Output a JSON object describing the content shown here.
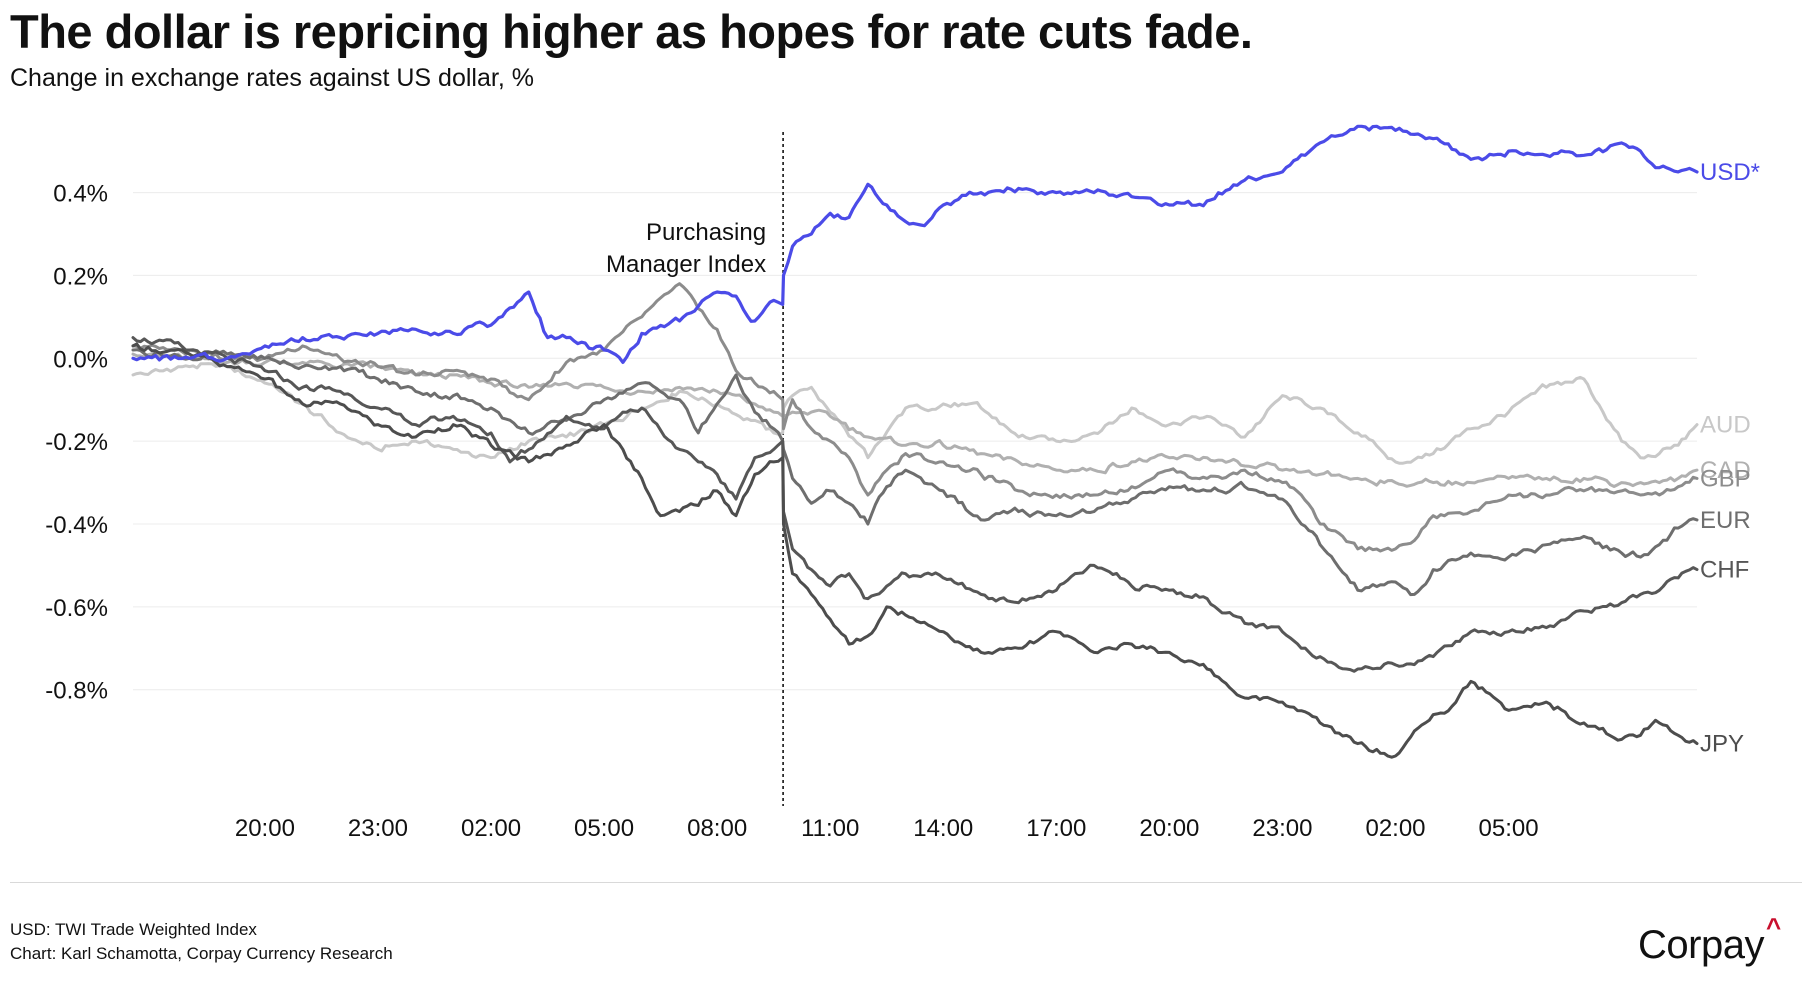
{
  "title": "The dollar is repricing higher as hopes for rate cuts fade.",
  "subtitle": "Change in exchange rates against US dollar, %",
  "notes": [
    "USD: TWI Trade Weighted Index",
    "Chart: Karl Schamotta, Corpay Currency Research"
  ],
  "logo": {
    "text": "Corpay",
    "mark": "^",
    "mark_color": "#c8102e"
  },
  "chart_data": {
    "type": "line",
    "title": "The dollar is repricing higher as hopes for rate cuts fade.",
    "subtitle": "Change in exchange rates against US dollar, %",
    "xlabel": "",
    "ylabel": "",
    "x_range_hours": [
      16.5,
      58.0
    ],
    "x_ticks": [
      {
        "h": 20,
        "label": "20:00"
      },
      {
        "h": 23,
        "label": "23:00"
      },
      {
        "h": 26,
        "label": "02:00"
      },
      {
        "h": 29,
        "label": "05:00"
      },
      {
        "h": 32,
        "label": "08:00"
      },
      {
        "h": 35,
        "label": "11:00"
      },
      {
        "h": 38,
        "label": "14:00"
      },
      {
        "h": 41,
        "label": "17:00"
      },
      {
        "h": 44,
        "label": "20:00"
      },
      {
        "h": 47,
        "label": "23:00"
      },
      {
        "h": 50,
        "label": "02:00"
      },
      {
        "h": 53,
        "label": "05:00"
      }
    ],
    "y_ticks": [
      {
        "v": 0.4,
        "label": "0.4%"
      },
      {
        "v": 0.2,
        "label": "0.2%"
      },
      {
        "v": 0.0,
        "label": "0.0%"
      },
      {
        "v": -0.2,
        "label": "-0.2%"
      },
      {
        "v": -0.4,
        "label": "-0.4%"
      },
      {
        "v": -0.6,
        "label": "-0.6%"
      },
      {
        "v": -0.8,
        "label": "-0.8%"
      }
    ],
    "ylim": [
      -1.03,
      0.58
    ],
    "grid": "horizontal",
    "legend": "labels at line ends",
    "annotation": {
      "h": 33.75,
      "label_lines": [
        "Purchasing",
        "Manager Index"
      ]
    },
    "series": [
      {
        "name": "USD*",
        "color": "#4b4be8",
        "x": [
          16.5,
          18,
          19,
          20,
          21,
          22,
          23,
          24,
          25,
          26,
          27,
          27.5,
          28,
          29,
          29.5,
          30,
          31,
          32,
          32.5,
          33,
          33.5,
          33.74,
          33.76,
          34,
          34.5,
          35,
          35.5,
          36,
          36.5,
          37,
          37.5,
          38,
          39,
          40,
          41,
          42,
          43,
          44,
          45,
          46,
          47,
          48,
          49,
          50,
          51,
          52,
          53,
          54,
          55,
          56,
          56.5,
          57,
          57.5,
          58
        ],
        "y": [
          0.0,
          0.0,
          0.0,
          0.03,
          0.05,
          0.05,
          0.06,
          0.07,
          0.06,
          0.08,
          0.16,
          0.05,
          0.05,
          0.02,
          -0.01,
          0.06,
          0.09,
          0.16,
          0.15,
          0.09,
          0.14,
          0.13,
          0.2,
          0.27,
          0.3,
          0.35,
          0.34,
          0.42,
          0.37,
          0.33,
          0.32,
          0.37,
          0.4,
          0.41,
          0.4,
          0.4,
          0.39,
          0.37,
          0.38,
          0.43,
          0.45,
          0.52,
          0.56,
          0.55,
          0.53,
          0.48,
          0.5,
          0.49,
          0.49,
          0.52,
          0.5,
          0.46,
          0.45,
          0.45
        ]
      },
      {
        "name": "AUD",
        "color": "#c8c8c8",
        "x": [
          16.5,
          18,
          19,
          20,
          21,
          22,
          23,
          24,
          25,
          26,
          27,
          28,
          29,
          30,
          31,
          32,
          33,
          33.5,
          33.74,
          33.76,
          34,
          34.5,
          35,
          36,
          37,
          38,
          39,
          40,
          41,
          42,
          43,
          44,
          45,
          46,
          47,
          48,
          49,
          50,
          51,
          52,
          53,
          54,
          55,
          56,
          56.5,
          57,
          57.5,
          58
        ],
        "y": [
          -0.04,
          -0.02,
          -0.02,
          -0.06,
          -0.11,
          -0.18,
          -0.22,
          -0.2,
          -0.22,
          -0.24,
          -0.2,
          -0.19,
          -0.16,
          -0.12,
          -0.08,
          -0.11,
          -0.15,
          -0.18,
          -0.18,
          -0.12,
          -0.09,
          -0.07,
          -0.13,
          -0.24,
          -0.12,
          -0.11,
          -0.12,
          -0.19,
          -0.2,
          -0.18,
          -0.12,
          -0.16,
          -0.14,
          -0.19,
          -0.09,
          -0.12,
          -0.18,
          -0.25,
          -0.23,
          -0.17,
          -0.13,
          -0.07,
          -0.05,
          -0.2,
          -0.24,
          -0.23,
          -0.21,
          -0.16
        ]
      },
      {
        "name": "CAD",
        "color": "#b0b0b0",
        "x": [
          16.5,
          18,
          19,
          20,
          21,
          22,
          23,
          24,
          25,
          26,
          27,
          28,
          29,
          30,
          31,
          32,
          33,
          33.5,
          33.74,
          33.76,
          34,
          34.5,
          35,
          36,
          37,
          38,
          39,
          40,
          41,
          42,
          43,
          44,
          45,
          46,
          47,
          48,
          49,
          50,
          51,
          52,
          53,
          54,
          55,
          56,
          56.5,
          57,
          57.5,
          58
        ],
        "y": [
          0.01,
          0.0,
          -0.01,
          -0.01,
          -0.01,
          -0.02,
          -0.02,
          -0.04,
          -0.04,
          -0.06,
          -0.07,
          -0.06,
          -0.07,
          -0.08,
          -0.07,
          -0.08,
          -0.11,
          -0.13,
          -0.14,
          -0.14,
          -0.13,
          -0.13,
          -0.14,
          -0.19,
          -0.21,
          -0.21,
          -0.23,
          -0.25,
          -0.27,
          -0.27,
          -0.25,
          -0.24,
          -0.24,
          -0.26,
          -0.27,
          -0.28,
          -0.29,
          -0.3,
          -0.3,
          -0.3,
          -0.29,
          -0.29,
          -0.29,
          -0.3,
          -0.3,
          -0.3,
          -0.29,
          -0.27
        ]
      },
      {
        "name": "GBP",
        "color": "#8c8c8c",
        "x": [
          16.5,
          18,
          19,
          20,
          21,
          22,
          23,
          24,
          25,
          26,
          27,
          28,
          29,
          30,
          31,
          31.5,
          32,
          32.5,
          33,
          33.5,
          33.74,
          33.76,
          34,
          34.5,
          35,
          35.5,
          36,
          36.5,
          37,
          38,
          39,
          40,
          41,
          42,
          43,
          44,
          45,
          46,
          47,
          47.5,
          48,
          49,
          50,
          50.5,
          51,
          52,
          53,
          54,
          55,
          56,
          56.5,
          57,
          57.5,
          58
        ],
        "y": [
          0.03,
          0.02,
          0.0,
          0.0,
          0.03,
          0.0,
          -0.02,
          -0.04,
          -0.03,
          -0.05,
          -0.1,
          -0.01,
          0.02,
          0.1,
          0.18,
          0.12,
          0.07,
          -0.03,
          -0.06,
          -0.08,
          -0.1,
          -0.17,
          -0.1,
          -0.17,
          -0.2,
          -0.24,
          -0.33,
          -0.27,
          -0.23,
          -0.25,
          -0.28,
          -0.32,
          -0.33,
          -0.33,
          -0.31,
          -0.27,
          -0.29,
          -0.27,
          -0.3,
          -0.33,
          -0.4,
          -0.46,
          -0.46,
          -0.44,
          -0.38,
          -0.37,
          -0.33,
          -0.33,
          -0.32,
          -0.32,
          -0.33,
          -0.33,
          -0.31,
          -0.29
        ]
      },
      {
        "name": "EUR",
        "color": "#6e6e6e",
        "x": [
          16.5,
          18,
          19,
          20,
          21,
          22,
          23,
          24,
          25,
          26,
          27,
          28,
          29,
          30,
          31,
          31.5,
          32,
          32.5,
          33,
          33.5,
          33.74,
          33.76,
          34,
          34.5,
          35,
          35.5,
          36,
          36.5,
          37,
          38,
          39,
          40,
          41,
          42,
          43,
          44,
          45,
          46,
          47,
          47.5,
          48,
          49,
          50,
          50.5,
          51,
          52,
          53,
          54,
          55,
          56,
          56.5,
          57,
          57.5,
          58
        ],
        "y": [
          0.02,
          0.0,
          0.01,
          0.0,
          -0.02,
          -0.02,
          -0.05,
          -0.08,
          -0.09,
          -0.12,
          -0.18,
          -0.15,
          -0.1,
          -0.06,
          -0.1,
          -0.18,
          -0.11,
          -0.04,
          -0.13,
          -0.17,
          -0.2,
          -0.22,
          -0.29,
          -0.35,
          -0.32,
          -0.35,
          -0.4,
          -0.31,
          -0.27,
          -0.32,
          -0.39,
          -0.37,
          -0.38,
          -0.37,
          -0.34,
          -0.31,
          -0.32,
          -0.31,
          -0.34,
          -0.4,
          -0.45,
          -0.56,
          -0.54,
          -0.57,
          -0.51,
          -0.47,
          -0.48,
          -0.45,
          -0.43,
          -0.47,
          -0.48,
          -0.45,
          -0.41,
          -0.39
        ]
      },
      {
        "name": "CHF",
        "color": "#575757",
        "x": [
          16.5,
          18,
          19,
          20,
          21,
          22,
          23,
          24,
          25,
          26,
          26.5,
          27,
          28,
          29,
          29.5,
          30,
          31,
          31.5,
          32,
          32.5,
          33,
          33.5,
          33.74,
          33.76,
          34,
          34.5,
          35,
          35.5,
          36,
          36.5,
          37,
          38,
          39,
          40,
          41,
          42,
          43,
          44,
          45,
          46,
          47,
          47.5,
          48,
          49,
          50,
          51,
          52,
          53,
          54,
          55,
          56,
          56.5,
          57,
          57.5,
          58
        ],
        "y": [
          0.05,
          0.02,
          0.0,
          -0.03,
          -0.07,
          -0.08,
          -0.12,
          -0.16,
          -0.14,
          -0.18,
          -0.25,
          -0.22,
          -0.14,
          -0.17,
          -0.13,
          -0.12,
          -0.22,
          -0.25,
          -0.28,
          -0.34,
          -0.24,
          -0.22,
          -0.2,
          -0.37,
          -0.46,
          -0.51,
          -0.55,
          -0.52,
          -0.58,
          -0.55,
          -0.52,
          -0.53,
          -0.57,
          -0.59,
          -0.56,
          -0.5,
          -0.55,
          -0.56,
          -0.58,
          -0.64,
          -0.66,
          -0.7,
          -0.72,
          -0.75,
          -0.74,
          -0.72,
          -0.66,
          -0.66,
          -0.65,
          -0.61,
          -0.59,
          -0.57,
          -0.56,
          -0.53,
          -0.51
        ]
      },
      {
        "name": "JPY",
        "color": "#4d4d4d",
        "x": [
          16.5,
          18,
          19,
          20,
          21,
          22,
          23,
          24,
          25,
          26,
          27,
          28,
          29,
          30,
          30.5,
          31,
          32,
          32.5,
          33,
          33.5,
          33.74,
          33.76,
          34,
          34.5,
          35,
          35.5,
          36,
          36.5,
          37,
          38,
          39,
          40,
          41,
          42,
          43,
          44,
          45,
          46,
          47,
          48,
          49,
          50,
          50.5,
          51,
          51.5,
          52,
          53,
          54,
          55,
          56,
          56.5,
          57,
          57.5,
          58
        ],
        "y": [
          0.03,
          0.01,
          -0.02,
          -0.05,
          -0.11,
          -0.11,
          -0.16,
          -0.19,
          -0.16,
          -0.21,
          -0.25,
          -0.21,
          -0.16,
          -0.29,
          -0.38,
          -0.37,
          -0.32,
          -0.38,
          -0.28,
          -0.25,
          -0.24,
          -0.4,
          -0.52,
          -0.57,
          -0.63,
          -0.69,
          -0.67,
          -0.6,
          -0.62,
          -0.66,
          -0.71,
          -0.7,
          -0.66,
          -0.71,
          -0.69,
          -0.71,
          -0.75,
          -0.82,
          -0.83,
          -0.88,
          -0.93,
          -0.96,
          -0.9,
          -0.86,
          -0.84,
          -0.78,
          -0.85,
          -0.83,
          -0.88,
          -0.92,
          -0.91,
          -0.88,
          -0.91,
          -0.93
        ]
      }
    ]
  }
}
